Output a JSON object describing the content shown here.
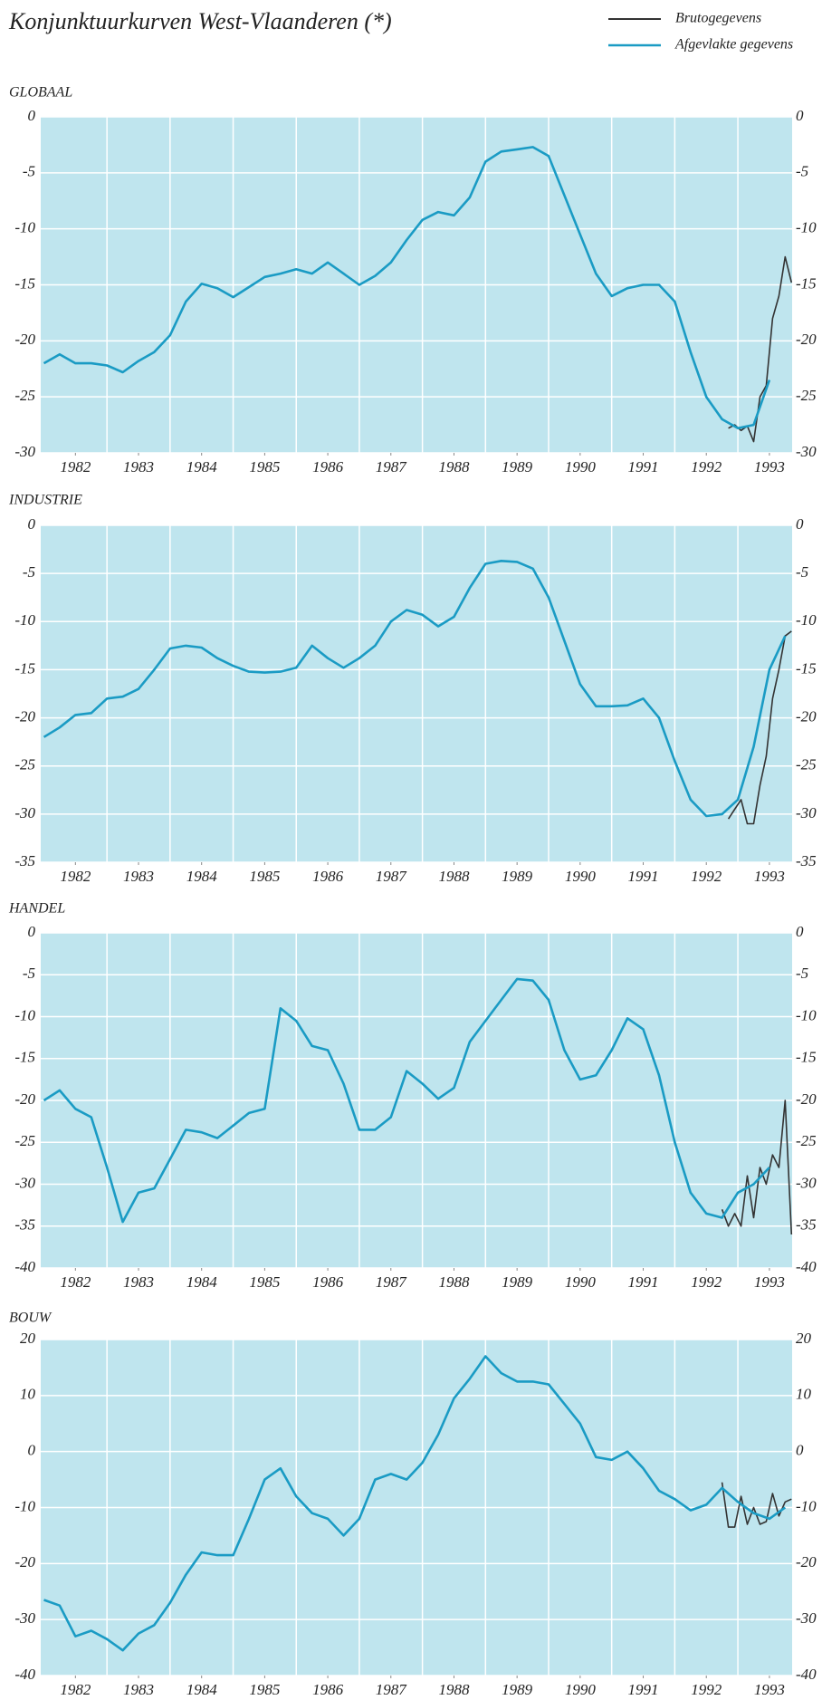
{
  "title": "Konjunktuurkurven West-Vlaanderen (*)",
  "legend": [
    {
      "name": "Brutogegevens",
      "color": "#333333"
    },
    {
      "name": "Afgevlakte gegevens",
      "color": "#1a9bc4"
    }
  ],
  "chart_data": [
    {
      "type": "line",
      "title": "GLOBAAL",
      "ylim": [
        -30,
        0
      ],
      "yticks": [
        0,
        -5,
        -10,
        -15,
        -20,
        -25,
        -30
      ],
      "xlim": [
        1981.45,
        1993.36
      ],
      "xticks": [
        1982,
        1983,
        1984,
        1985,
        1986,
        1987,
        1988,
        1989,
        1990,
        1991,
        1992,
        1993
      ],
      "grid": true,
      "series": [
        {
          "x": [
            1992.35,
            1992.45,
            1992.55,
            1992.65,
            1992.75,
            1992.85,
            1992.95,
            1993.05,
            1993.15,
            1993.25,
            1993.35
          ],
          "values": [
            -27.8,
            -27.5,
            -28,
            -27.6,
            -29,
            -25,
            -24,
            -18,
            -16,
            -12.5,
            -14.8
          ]
        },
        {
          "x": [
            1981.5,
            1981.75,
            1982,
            1982.25,
            1982.5,
            1982.75,
            1983,
            1983.25,
            1983.5,
            1983.75,
            1984,
            1984.25,
            1984.5,
            1984.75,
            1985,
            1985.25,
            1985.5,
            1985.75,
            1986,
            1986.25,
            1986.5,
            1986.75,
            1987,
            1987.25,
            1987.5,
            1987.75,
            1988,
            1988.25,
            1988.5,
            1988.75,
            1989,
            1989.25,
            1989.5,
            1989.75,
            1990,
            1990.25,
            1990.5,
            1990.75,
            1991,
            1991.25,
            1991.5,
            1991.75,
            1992,
            1992.25,
            1992.5,
            1992.75,
            1993
          ],
          "values": [
            -22,
            -21.2,
            -22,
            -22,
            -22.2,
            -22.8,
            -21.8,
            -21,
            -19.5,
            -16.5,
            -14.9,
            -15.3,
            -16.1,
            -15.2,
            -14.3,
            -14,
            -13.6,
            -14,
            -13,
            -14,
            -15,
            -14.2,
            -13,
            -11,
            -9.2,
            -8.5,
            -8.8,
            -7.2,
            -4,
            -3.1,
            -2.9,
            -2.7,
            -3.5,
            -7,
            -10.5,
            -14,
            -16,
            -15.3,
            -15,
            -15,
            -16.5,
            -21,
            -25,
            -27,
            -27.8,
            -27.5,
            -23.5
          ]
        }
      ]
    },
    {
      "type": "line",
      "title": "INDUSTRIE",
      "ylim": [
        -35,
        0
      ],
      "yticks": [
        0,
        -5,
        -10,
        -15,
        -20,
        -25,
        -30,
        -35
      ],
      "xlim": [
        1981.45,
        1993.36
      ],
      "xticks": [
        1982,
        1983,
        1984,
        1985,
        1986,
        1987,
        1988,
        1989,
        1990,
        1991,
        1992,
        1993
      ],
      "grid": true,
      "series": [
        {
          "x": [
            1992.35,
            1992.45,
            1992.55,
            1992.65,
            1992.75,
            1992.85,
            1992.95,
            1993.05,
            1993.15,
            1993.25,
            1993.35
          ],
          "values": [
            -30.5,
            -29.5,
            -28.5,
            -31,
            -31,
            -27,
            -24,
            -18,
            -15,
            -11.5,
            -11
          ]
        },
        {
          "x": [
            1981.5,
            1981.75,
            1982,
            1982.25,
            1982.5,
            1982.75,
            1983,
            1983.25,
            1983.5,
            1983.75,
            1984,
            1984.25,
            1984.5,
            1984.75,
            1985,
            1985.25,
            1985.5,
            1985.75,
            1986,
            1986.25,
            1986.5,
            1986.75,
            1987,
            1987.25,
            1987.5,
            1987.75,
            1988,
            1988.25,
            1988.5,
            1988.75,
            1989,
            1989.25,
            1989.5,
            1989.75,
            1990,
            1990.25,
            1990.5,
            1990.75,
            1991,
            1991.25,
            1991.5,
            1991.75,
            1992,
            1992.25,
            1992.5,
            1992.75,
            1993,
            1993.25
          ],
          "values": [
            -22,
            -21,
            -19.7,
            -19.5,
            -18,
            -17.8,
            -17,
            -15,
            -12.8,
            -12.5,
            -12.7,
            -13.8,
            -14.6,
            -15.2,
            -15.3,
            -15.2,
            -14.8,
            -12.5,
            -13.8,
            -14.8,
            -13.8,
            -12.5,
            -10,
            -8.8,
            -9.3,
            -10.5,
            -9.5,
            -6.5,
            -4,
            -3.7,
            -3.8,
            -4.5,
            -7.5,
            -12,
            -16.5,
            -18.8,
            -18.8,
            -18.7,
            -18,
            -20,
            -24.5,
            -28.5,
            -30.2,
            -30,
            -28.5,
            -23,
            -15,
            -11.5
          ]
        }
      ]
    },
    {
      "type": "line",
      "title": "HANDEL",
      "ylim": [
        -40,
        0
      ],
      "yticks": [
        0,
        -5,
        -10,
        -15,
        -20,
        -25,
        -30,
        -35,
        -40
      ],
      "xlim": [
        1981.45,
        1993.36
      ],
      "xticks": [
        1982,
        1983,
        1984,
        1985,
        1986,
        1987,
        1988,
        1989,
        1990,
        1991,
        1992,
        1993
      ],
      "grid": true,
      "series": [
        {
          "x": [
            1992.25,
            1992.35,
            1992.45,
            1992.55,
            1992.65,
            1992.75,
            1992.85,
            1992.95,
            1993.05,
            1993.15,
            1993.25,
            1993.35
          ],
          "values": [
            -33,
            -35,
            -33.5,
            -35,
            -29,
            -34,
            -28,
            -30,
            -26.5,
            -28,
            -20,
            -36
          ]
        },
        {
          "x": [
            1981.5,
            1981.75,
            1982,
            1982.25,
            1982.5,
            1982.75,
            1983,
            1983.25,
            1983.5,
            1983.75,
            1984,
            1984.25,
            1984.5,
            1984.75,
            1985,
            1985.25,
            1985.5,
            1985.75,
            1986,
            1986.25,
            1986.5,
            1986.75,
            1987,
            1987.25,
            1987.5,
            1987.75,
            1988,
            1988.25,
            1988.5,
            1988.75,
            1989,
            1989.25,
            1989.5,
            1989.75,
            1990,
            1990.25,
            1990.5,
            1990.75,
            1991,
            1991.25,
            1991.5,
            1991.75,
            1992,
            1992.25,
            1992.5,
            1992.75,
            1993
          ],
          "values": [
            -20,
            -18.8,
            -21,
            -22,
            -28,
            -34.5,
            -31,
            -30.5,
            -27,
            -23.5,
            -23.8,
            -24.5,
            -23,
            -21.5,
            -21,
            -9,
            -10.5,
            -13.5,
            -14,
            -18,
            -23.5,
            -23.5,
            -22,
            -16.5,
            -18,
            -19.8,
            -18.5,
            -13,
            -10.5,
            -8,
            -5.5,
            -5.7,
            -8,
            -14,
            -17.5,
            -17,
            -14,
            -10.2,
            -11.5,
            -17,
            -25,
            -31,
            -33.5,
            -34,
            -31,
            -30,
            -28
          ]
        }
      ]
    },
    {
      "type": "line",
      "title": "BOUW",
      "ylim": [
        -40,
        20
      ],
      "yticks": [
        20,
        10,
        0,
        -10,
        -20,
        -30,
        -40
      ],
      "xlim": [
        1981.45,
        1993.36
      ],
      "xticks": [
        1982,
        1983,
        1984,
        1985,
        1986,
        1987,
        1988,
        1989,
        1990,
        1991,
        1992,
        1993
      ],
      "grid": true,
      "series": [
        {
          "x": [
            1992.25,
            1992.35,
            1992.45,
            1992.55,
            1992.65,
            1992.75,
            1992.85,
            1992.95,
            1993.05,
            1993.15,
            1993.25,
            1993.35
          ],
          "values": [
            -5.5,
            -13.5,
            -13.5,
            -8,
            -13,
            -10,
            -13,
            -12.5,
            -7.5,
            -11.5,
            -9,
            -8.5
          ]
        },
        {
          "x": [
            1981.5,
            1981.75,
            1982,
            1982.25,
            1982.5,
            1982.75,
            1983,
            1983.25,
            1983.5,
            1983.75,
            1984,
            1984.25,
            1984.5,
            1984.75,
            1985,
            1985.25,
            1985.5,
            1985.75,
            1986,
            1986.25,
            1986.5,
            1986.75,
            1987,
            1987.25,
            1987.5,
            1987.75,
            1988,
            1988.25,
            1988.5,
            1988.75,
            1989,
            1989.25,
            1989.5,
            1989.75,
            1990,
            1990.25,
            1990.5,
            1990.75,
            1991,
            1991.25,
            1991.5,
            1991.75,
            1992,
            1992.25,
            1992.5,
            1992.75,
            1993,
            1993.25
          ],
          "values": [
            -26.5,
            -27.5,
            -33,
            -32,
            -33.5,
            -35.5,
            -32.5,
            -31,
            -27,
            -22,
            -18,
            -18.5,
            -18.5,
            -12,
            -5,
            -3,
            -8,
            -11,
            -12,
            -15,
            -12,
            -5,
            -4,
            -5,
            -2,
            3,
            9.5,
            13,
            17,
            14,
            12.5,
            12.5,
            12,
            8.5,
            5,
            -1,
            -1.5,
            0,
            -3,
            -7,
            -8.5,
            -10.5,
            -9.5,
            -6.5,
            -9,
            -11,
            -12,
            -10
          ]
        }
      ]
    }
  ]
}
